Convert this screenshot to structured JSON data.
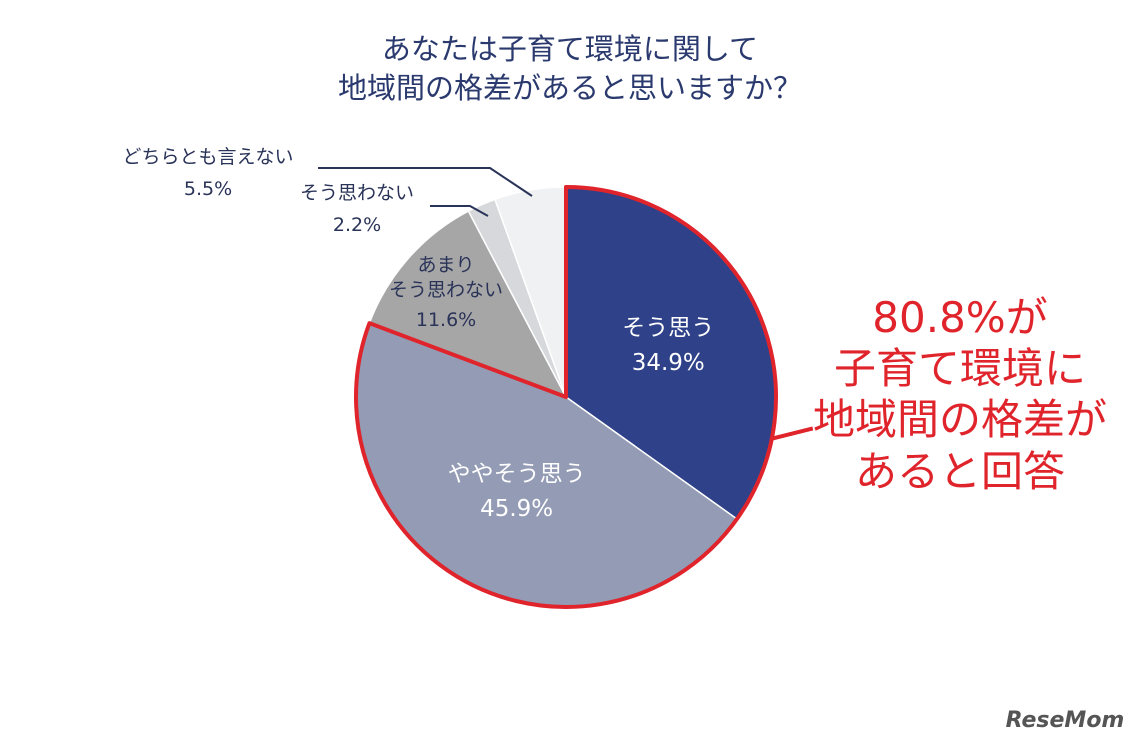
{
  "chart_data": {
    "type": "pie",
    "title": "あなたは子育て環境に関して\n地域間の格差があると思いますか？",
    "categories": [
      "そう思う",
      "ややそう思う",
      "あまり\nそう思わない",
      "そう思わない",
      "どちらとも言えない"
    ],
    "values": [
      34.9,
      45.9,
      11.6,
      2.2,
      5.5
    ],
    "value_labels": [
      "34.9%",
      "45.9%",
      "11.6%",
      "2.2%",
      "5.5%"
    ],
    "colors": [
      "#2e4189",
      "#939bb5",
      "#a6a6a6",
      "#d6d8dc",
      "#f0f1f3"
    ],
    "annotation": "80.8%が\n子育て環境に\n地域間の格差が\nあると回答",
    "highlight_color": "#e0242b",
    "watermark": "ReseMom"
  }
}
